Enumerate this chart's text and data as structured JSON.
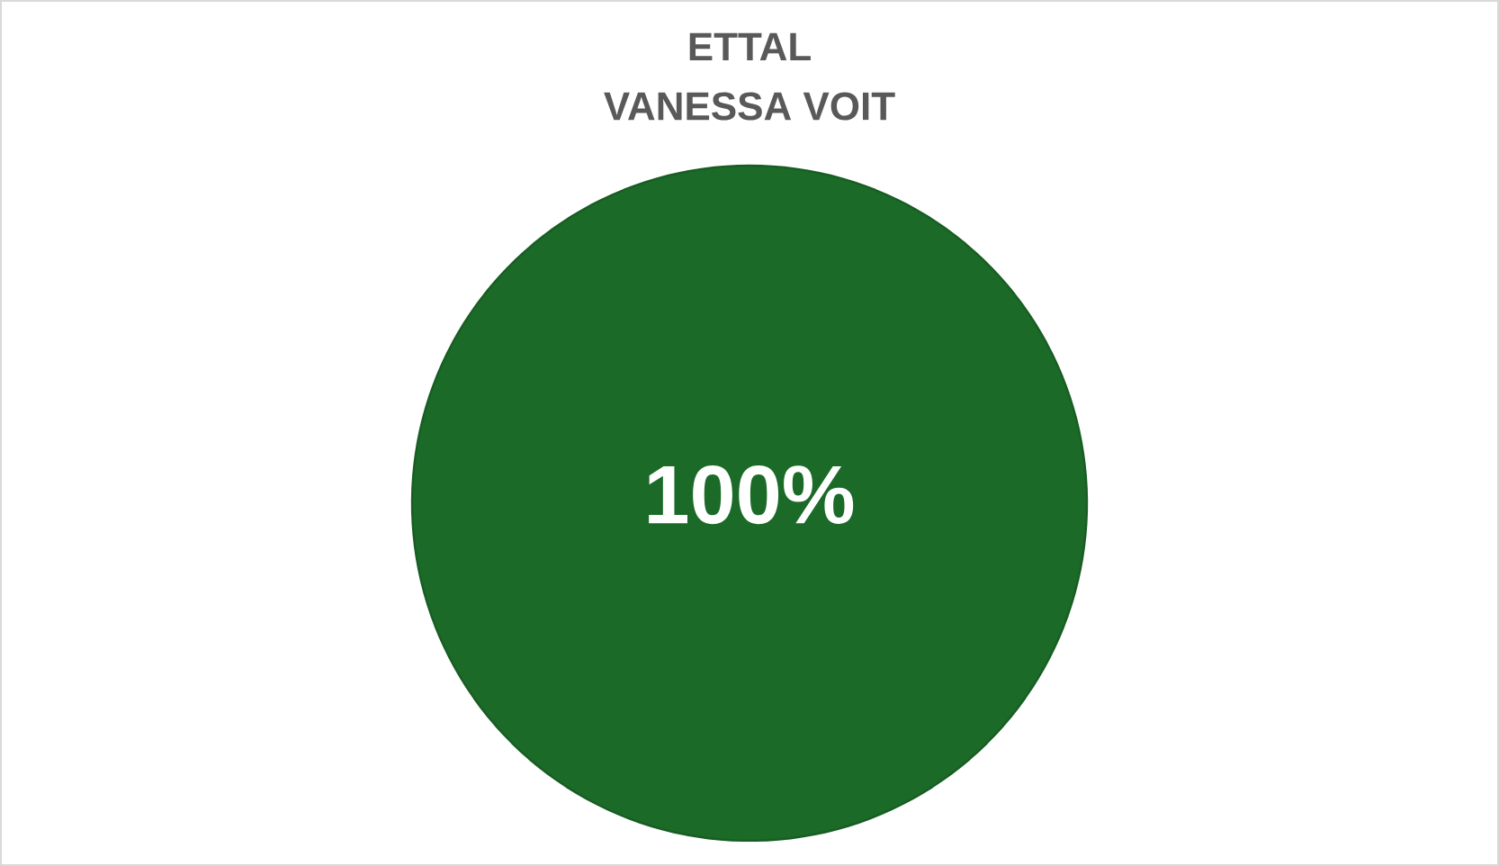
{
  "chart_data": {
    "type": "pie",
    "title": "ETTAL",
    "subtitle": "VANESSA VOIT",
    "categories": [
      null
    ],
    "values": [
      100
    ],
    "colors": [
      "#1b6a28"
    ],
    "value_labels": [
      "100%"
    ]
  }
}
